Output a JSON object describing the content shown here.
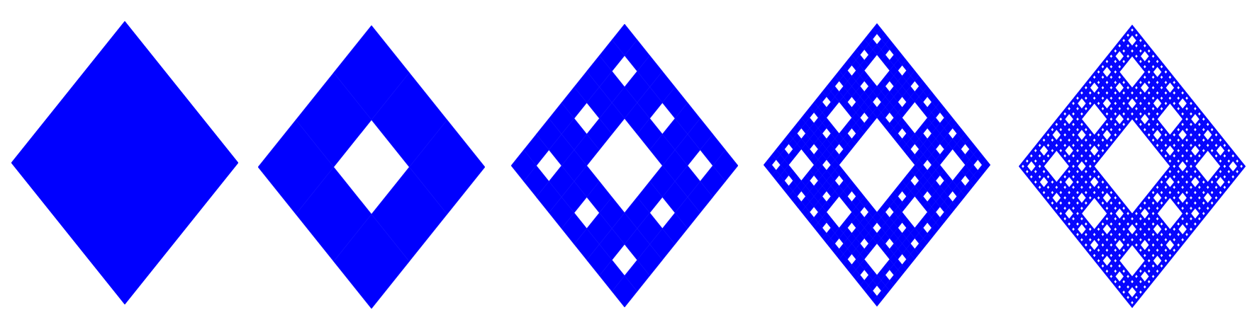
{
  "figure": {
    "fill_color": "#0000ff",
    "cell_edge_color": "#1414ff",
    "background_color": "#ffffff",
    "panels": [
      {
        "name": "level-0",
        "iterations": 0
      },
      {
        "name": "level-1",
        "iterations": 1
      },
      {
        "name": "level-2",
        "iterations": 2
      },
      {
        "name": "level-3",
        "iterations": 3
      },
      {
        "name": "level-4",
        "iterations": 4
      }
    ]
  }
}
